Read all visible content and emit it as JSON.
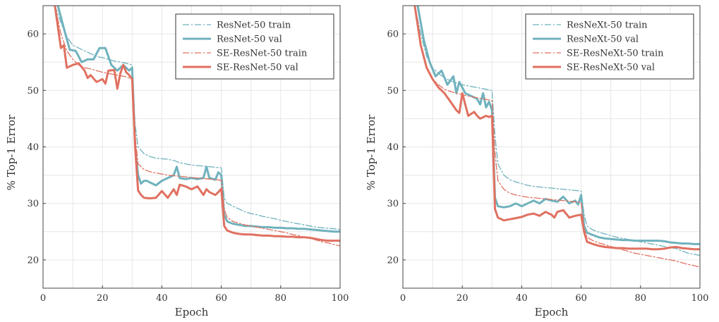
{
  "chart_data": [
    {
      "type": "line",
      "xlabel": "Epoch",
      "ylabel": "% Top-1 Error",
      "xlim": [
        0,
        100
      ],
      "ylim": [
        15,
        65
      ],
      "xticks": [
        0,
        20,
        40,
        60,
        80,
        100
      ],
      "yticks": [
        20,
        30,
        40,
        50,
        60
      ],
      "grid": true,
      "legend_position": "top-right",
      "series": [
        {
          "name": "ResNet-50 train",
          "color": "#6fb2bd",
          "style": "dashdot",
          "width": "thin",
          "x": [
            4,
            6,
            8,
            10,
            12,
            14,
            16,
            18,
            20,
            22,
            24,
            26,
            28,
            30,
            31,
            32,
            34,
            36,
            38,
            40,
            42,
            44,
            46,
            48,
            50,
            52,
            54,
            56,
            58,
            60,
            61,
            62,
            64,
            66,
            68,
            70,
            72,
            74,
            76,
            78,
            80,
            82,
            84,
            86,
            88,
            90,
            92,
            94,
            96,
            98,
            100
          ],
          "y": [
            65,
            62,
            59.5,
            58,
            57.5,
            57,
            56.5,
            56,
            55.8,
            55.5,
            55.2,
            55,
            54.8,
            54.5,
            44,
            40,
            38.8,
            38.3,
            38,
            37.9,
            37.8,
            37.6,
            37.2,
            37,
            36.8,
            36.7,
            36.6,
            36.5,
            36.4,
            36.3,
            31,
            30,
            29.5,
            29,
            28.5,
            28.2,
            28,
            27.7,
            27.5,
            27.3,
            27,
            26.8,
            26.6,
            26.4,
            26.2,
            26,
            25.8,
            25.7,
            25.6,
            25.5,
            25.4
          ]
        },
        {
          "name": "ResNet-50 val",
          "color": "#6fb2bd",
          "style": "solid",
          "width": "thick",
          "x": [
            5,
            7,
            9,
            11,
            13,
            15,
            17,
            19,
            20,
            21,
            23,
            25,
            27,
            28,
            29,
            30,
            31,
            32,
            33,
            34,
            35,
            36,
            38,
            40,
            42,
            44,
            45,
            46,
            48,
            50,
            52,
            54,
            55,
            56,
            58,
            59,
            60,
            61,
            62,
            64,
            66,
            68,
            70,
            72,
            74,
            76,
            78,
            80,
            82,
            84,
            86,
            88,
            90,
            92,
            94,
            96,
            98,
            100
          ],
          "y": [
            65,
            61,
            57.2,
            57,
            55,
            55.5,
            55.5,
            57.5,
            57.5,
            57.5,
            54.5,
            53.5,
            54.5,
            54,
            53.5,
            54,
            40,
            35,
            33.5,
            34,
            34,
            33.7,
            33.2,
            34,
            34.5,
            35,
            36.5,
            34.5,
            34.3,
            34.5,
            34.3,
            34.5,
            36.5,
            34.5,
            34.2,
            35.5,
            35,
            28,
            26.8,
            26.4,
            26.2,
            26,
            26,
            25.9,
            25.8,
            25.8,
            25.7,
            25.7,
            25.6,
            25.6,
            25.5,
            25.5,
            25.4,
            25.3,
            25.2,
            25.1,
            25,
            25
          ]
        },
        {
          "name": "SE-ResNet-50 train",
          "color": "#e07060",
          "style": "dashdot",
          "width": "thin",
          "x": [
            4,
            6,
            8,
            10,
            12,
            14,
            16,
            18,
            20,
            22,
            24,
            26,
            28,
            30,
            31,
            32,
            34,
            36,
            38,
            40,
            42,
            44,
            46,
            48,
            50,
            52,
            54,
            56,
            58,
            60,
            61,
            62,
            64,
            66,
            68,
            70,
            72,
            74,
            76,
            78,
            80,
            82,
            84,
            86,
            88,
            90,
            92,
            94,
            96,
            98,
            100
          ],
          "y": [
            65,
            60,
            57,
            55.5,
            54.5,
            54,
            53.8,
            53.5,
            53.2,
            53,
            52.8,
            52.6,
            52.4,
            52,
            42,
            37,
            36,
            35.6,
            35.4,
            35.2,
            35,
            34.9,
            34.8,
            34.7,
            34.6,
            34.5,
            34.4,
            34.3,
            34.2,
            34.1,
            29,
            27.5,
            26.8,
            26.5,
            26.2,
            26,
            25.8,
            25.6,
            25.4,
            25.2,
            25,
            24.8,
            24.5,
            24.3,
            24,
            23.8,
            23.5,
            23.2,
            23,
            22.7,
            22.5
          ]
        },
        {
          "name": "SE-ResNet-50 val",
          "color": "#e07060",
          "style": "solid",
          "width": "thick",
          "x": [
            4,
            6,
            7,
            8,
            10,
            12,
            14,
            15,
            16,
            18,
            20,
            21,
            22,
            24,
            25,
            26,
            27,
            28,
            29,
            30,
            31,
            32,
            33,
            34,
            36,
            38,
            40,
            42,
            44,
            45,
            46,
            48,
            50,
            52,
            54,
            55,
            56,
            58,
            59,
            60,
            61,
            62,
            64,
            66,
            68,
            70,
            72,
            74,
            76,
            78,
            80,
            82,
            84,
            86,
            88,
            90,
            92,
            94,
            96,
            98,
            100
          ],
          "y": [
            65,
            57.5,
            58,
            54,
            54.5,
            54.8,
            53.5,
            52.2,
            52.7,
            51.5,
            52,
            51.2,
            53.5,
            53.6,
            50.3,
            53,
            54.5,
            53.2,
            52.7,
            52,
            40,
            32.3,
            31.5,
            31,
            30.9,
            31,
            32.2,
            31,
            32.5,
            31.5,
            33.3,
            33,
            32.5,
            33,
            31.5,
            32.5,
            32,
            31.5,
            32,
            32.6,
            26,
            25.2,
            24.8,
            24.6,
            24.5,
            24.5,
            24.4,
            24.3,
            24.3,
            24.2,
            24.2,
            24.1,
            24.1,
            24,
            24,
            23.9,
            23.7,
            23.5,
            23.4,
            23.4,
            23.4
          ]
        }
      ]
    },
    {
      "type": "line",
      "xlabel": "Epoch",
      "ylabel": "% Top-1 Error",
      "xlim": [
        0,
        100
      ],
      "ylim": [
        15,
        65
      ],
      "xticks": [
        0,
        20,
        40,
        60,
        80,
        100
      ],
      "yticks": [
        20,
        30,
        40,
        50,
        60
      ],
      "grid": true,
      "legend_position": "top-right",
      "series": [
        {
          "name": "ResNeXt-50 train",
          "color": "#6fb2bd",
          "style": "dashdot",
          "width": "thin",
          "x": [
            4,
            6,
            8,
            10,
            12,
            14,
            16,
            18,
            20,
            22,
            24,
            26,
            28,
            30,
            31,
            32,
            34,
            36,
            38,
            40,
            42,
            44,
            46,
            48,
            50,
            52,
            54,
            56,
            58,
            60,
            61,
            62,
            64,
            66,
            68,
            70,
            72,
            74,
            76,
            78,
            80,
            82,
            84,
            86,
            88,
            90,
            92,
            94,
            96,
            98,
            100
          ],
          "y": [
            65,
            60,
            56,
            54,
            53,
            52.2,
            51.7,
            51.3,
            51,
            50.8,
            50.6,
            50.4,
            50.2,
            50,
            42,
            37,
            35,
            34.2,
            33.8,
            33.5,
            33.2,
            33,
            32.9,
            32.8,
            32.7,
            32.6,
            32.5,
            32.4,
            32.3,
            32.2,
            28,
            26,
            25.3,
            24.9,
            24.6,
            24.3,
            24,
            23.8,
            23.6,
            23.4,
            23.2,
            23,
            22.8,
            22.6,
            22.4,
            22.2,
            22,
            21.6,
            21.2,
            21,
            20.8
          ]
        },
        {
          "name": "ResNeXt-50 val",
          "color": "#6fb2bd",
          "style": "solid",
          "width": "thick",
          "x": [
            5,
            7,
            9,
            11,
            13,
            15,
            17,
            18,
            19,
            20,
            21,
            23,
            25,
            26,
            27,
            28,
            29,
            30,
            31,
            32,
            34,
            36,
            38,
            40,
            42,
            44,
            46,
            48,
            50,
            52,
            54,
            56,
            58,
            59,
            60,
            61,
            62,
            64,
            66,
            68,
            70,
            72,
            74,
            76,
            78,
            80,
            82,
            84,
            86,
            88,
            90,
            92,
            94,
            96,
            98,
            100
          ],
          "y": [
            65,
            59,
            55,
            52.5,
            53.5,
            51,
            52.5,
            49.5,
            51.5,
            50.5,
            49.5,
            49,
            48.5,
            47.5,
            49.5,
            47,
            48,
            46.5,
            31,
            29.5,
            29.3,
            29.5,
            30,
            29.5,
            30,
            30.5,
            30,
            30.8,
            30.5,
            30.3,
            31.2,
            30,
            30.5,
            29.8,
            31.5,
            26,
            24.8,
            24.4,
            24,
            23.8,
            23.7,
            23.6,
            23.5,
            23.5,
            23.4,
            23.4,
            23.4,
            23.4,
            23.4,
            23.3,
            23.1,
            23,
            22.9,
            22.9,
            22.8,
            22.8
          ]
        },
        {
          "name": "SE-ResNeXt-50 train",
          "color": "#e07060",
          "style": "dashdot",
          "width": "thin",
          "x": [
            4,
            6,
            8,
            10,
            12,
            14,
            16,
            18,
            20,
            22,
            24,
            26,
            28,
            30,
            31,
            32,
            34,
            36,
            38,
            40,
            42,
            44,
            46,
            48,
            50,
            52,
            54,
            56,
            58,
            60,
            61,
            62,
            64,
            66,
            68,
            70,
            72,
            74,
            76,
            78,
            80,
            82,
            84,
            86,
            88,
            90,
            92,
            94,
            96,
            98,
            100
          ],
          "y": [
            65,
            58,
            54,
            52,
            51,
            50.2,
            49.8,
            49.5,
            49.2,
            49,
            48.8,
            48.6,
            48.4,
            48.2,
            39,
            34,
            32.5,
            31.8,
            31.5,
            31.3,
            31.1,
            31,
            30.9,
            30.8,
            30.7,
            30.6,
            30.5,
            30.4,
            30.3,
            30.2,
            25.5,
            24,
            23.4,
            23,
            22.7,
            22.4,
            22.1,
            21.8,
            21.5,
            21.2,
            21,
            20.8,
            20.6,
            20.4,
            20.2,
            20,
            19.8,
            19.5,
            19.2,
            19,
            18.7
          ]
        },
        {
          "name": "SE-ResNeXt-50 val",
          "color": "#e07060",
          "style": "solid",
          "width": "thick",
          "x": [
            4,
            6,
            8,
            10,
            12,
            14,
            16,
            18,
            19,
            20,
            22,
            24,
            25,
            26,
            28,
            29,
            30,
            31,
            32,
            34,
            36,
            38,
            40,
            42,
            44,
            46,
            48,
            50,
            51,
            52,
            54,
            56,
            58,
            60,
            61,
            62,
            64,
            66,
            68,
            70,
            72,
            74,
            76,
            78,
            80,
            82,
            84,
            86,
            88,
            90,
            92,
            94,
            96,
            98,
            100
          ],
          "y": [
            65,
            58,
            54,
            52,
            50.5,
            49.5,
            48,
            46.5,
            46,
            49.5,
            45.5,
            46.2,
            45.5,
            45,
            45.5,
            45.3,
            45.5,
            29,
            27.5,
            27,
            27.2,
            27.4,
            27.6,
            28,
            28.2,
            27.8,
            28.5,
            28,
            27.5,
            28.5,
            28.8,
            27.5,
            27.8,
            28,
            25,
            23.2,
            22.8,
            22.5,
            22.3,
            22.2,
            22.1,
            22.1,
            22,
            22,
            22,
            22,
            21.9,
            21.9,
            22,
            22.2,
            22.3,
            22.1,
            22,
            21.9,
            21.9
          ]
        }
      ]
    }
  ]
}
